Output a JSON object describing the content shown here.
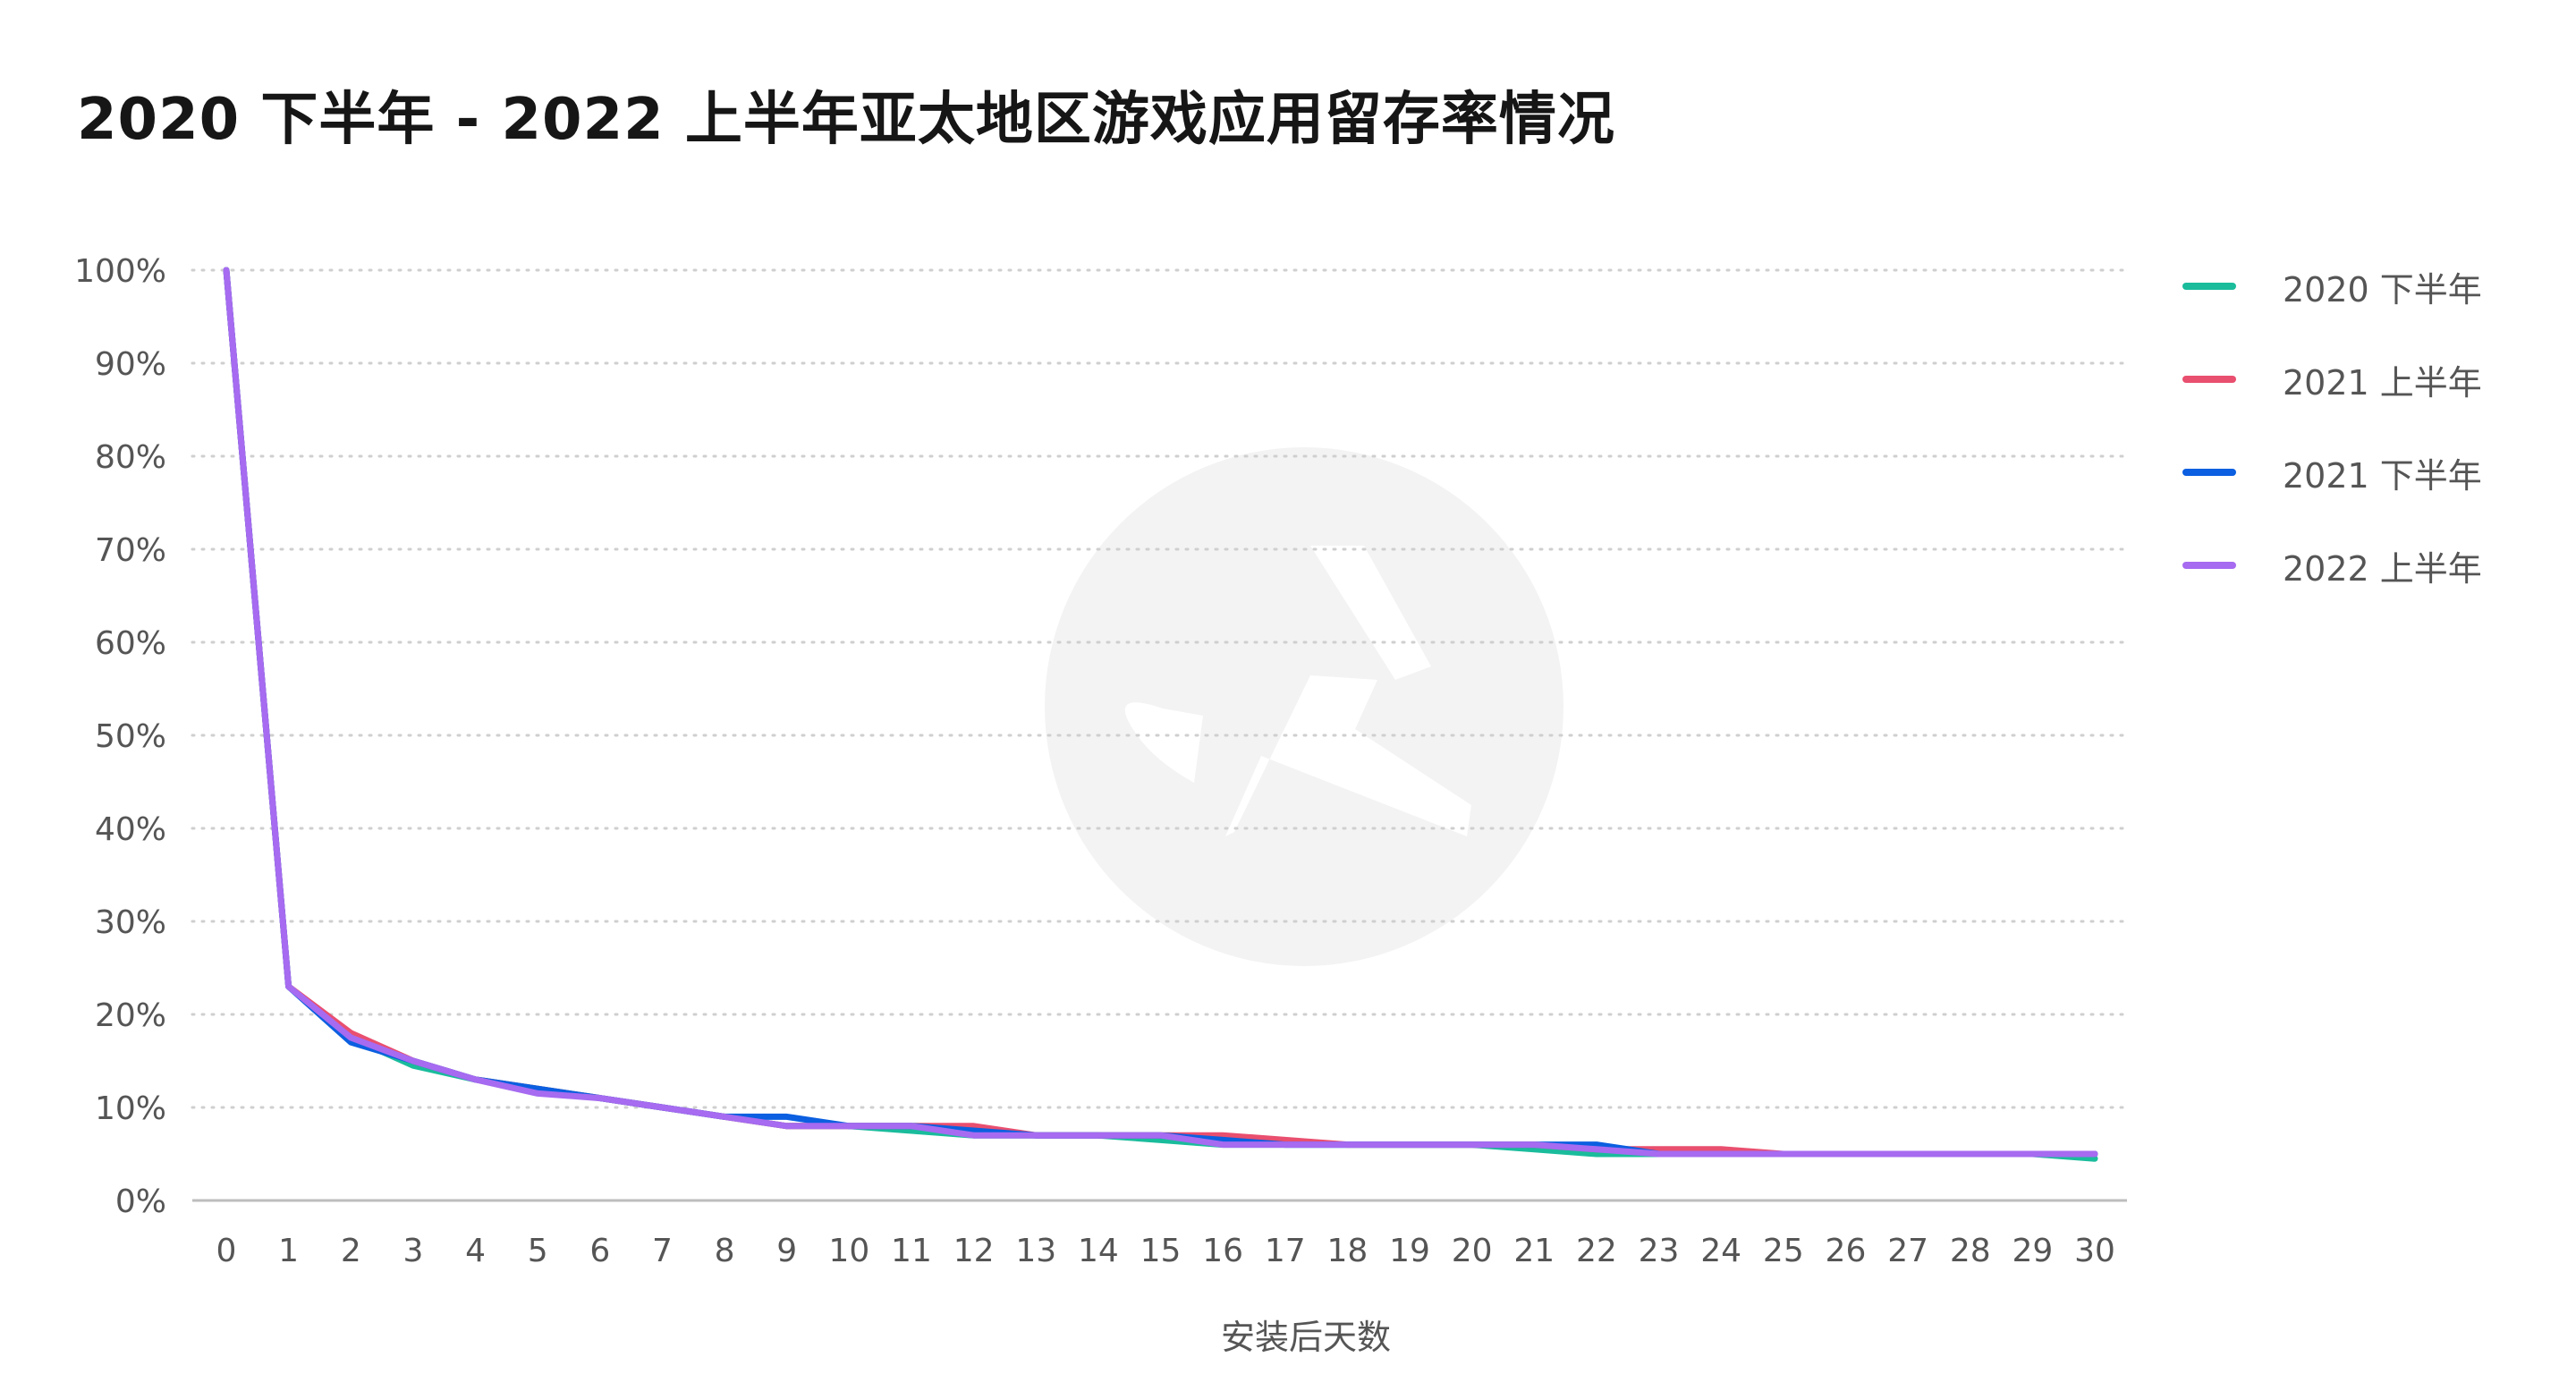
{
  "title": "2020 下半年 - 2022 上半年亚太地区游戏应用留存率情况",
  "chart_data": {
    "type": "line",
    "title": "2020 下半年 - 2022 上半年亚太地区游戏应用留存率情况",
    "xlabel": "安装后天数",
    "ylabel": "",
    "x": [
      0,
      1,
      2,
      3,
      4,
      5,
      6,
      7,
      8,
      9,
      10,
      11,
      12,
      13,
      14,
      15,
      16,
      17,
      18,
      19,
      20,
      21,
      22,
      23,
      24,
      25,
      26,
      27,
      28,
      29,
      30
    ],
    "ylim": [
      0,
      100
    ],
    "yticks": [
      0,
      10,
      20,
      30,
      40,
      50,
      60,
      70,
      80,
      90,
      100
    ],
    "ytick_labels": [
      "0%",
      "10%",
      "20%",
      "30%",
      "40%",
      "50%",
      "60%",
      "70%",
      "80%",
      "90%",
      "100%"
    ],
    "grid": true,
    "legend_position": "right",
    "series": [
      {
        "name": "2020 下半年",
        "color": "#1ABC9C",
        "values": [
          100,
          23,
          17.5,
          14.5,
          13,
          12,
          11,
          10,
          9,
          8,
          8,
          7.5,
          7,
          7,
          7,
          6.5,
          6,
          6,
          6,
          6,
          6,
          5.5,
          5,
          5,
          5,
          5,
          5,
          5,
          5,
          5,
          4.5
        ]
      },
      {
        "name": "2021 上半年",
        "color": "#E94F6F",
        "values": [
          100,
          23,
          18,
          15,
          13,
          12,
          11,
          10,
          9,
          8,
          8,
          8,
          8,
          7,
          7,
          7,
          7,
          6.5,
          6,
          6,
          6,
          6,
          5.5,
          5.5,
          5.5,
          5,
          5,
          5,
          5,
          5,
          5
        ]
      },
      {
        "name": "2021 下半年",
        "color": "#0B5FE0",
        "values": [
          100,
          23,
          17,
          15,
          13,
          12,
          11,
          10,
          9,
          9,
          8,
          8,
          7.5,
          7,
          7,
          7,
          6.5,
          6,
          6,
          6,
          6,
          6,
          6,
          5,
          5,
          5,
          5,
          5,
          5,
          5,
          5
        ]
      },
      {
        "name": "2022 上半年",
        "color": "#A66BF0",
        "values": [
          100,
          23,
          17.5,
          15,
          13,
          11.5,
          11,
          10,
          9,
          8,
          8,
          8,
          7,
          7,
          7,
          7,
          6,
          6,
          6,
          6,
          6,
          6,
          5.5,
          5,
          5,
          5,
          5,
          5,
          5,
          5,
          5
        ]
      }
    ]
  }
}
